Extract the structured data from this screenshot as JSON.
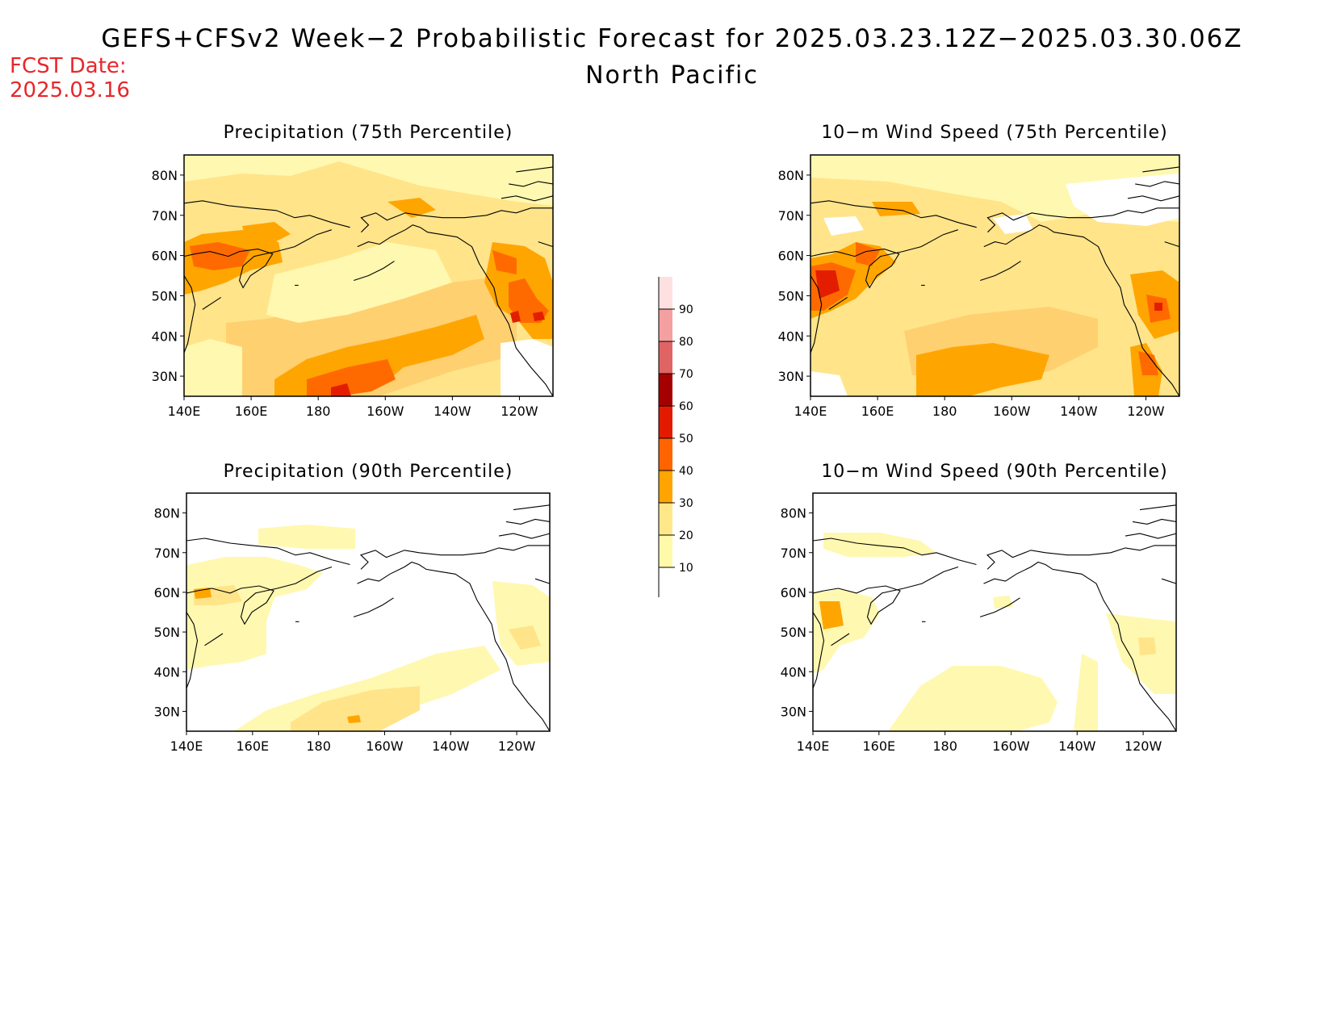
{
  "header": {
    "title": "GEFS+CFSv2 Week−2 Probabilistic Forecast for 2025.03.23.12Z−2025.03.30.06Z",
    "region": "North Pacific",
    "fcst_label": "FCST Date:",
    "fcst_date": "2025.03.16"
  },
  "panels": [
    {
      "title": "Precipitation (75th Percentile)"
    },
    {
      "title": "10−m Wind Speed (75th Percentile)"
    },
    {
      "title": "Precipitation (90th Percentile)"
    },
    {
      "title": "10−m Wind Speed (90th Percentile)"
    }
  ],
  "axes": {
    "lon_ticks": [
      "140E",
      "160E",
      "180",
      "160W",
      "140W",
      "120W"
    ],
    "lat_ticks": [
      "80N",
      "70N",
      "60N",
      "50N",
      "40N",
      "30N"
    ]
  },
  "colorbar": {
    "levels": [
      "10",
      "20",
      "30",
      "40",
      "50",
      "60",
      "70",
      "80",
      "90"
    ],
    "colors": [
      "#fffaaa",
      "#ffe88a",
      "#ffa400",
      "#ff6400",
      "#e41a00",
      "#a50000",
      "#e06464",
      "#f4a0a0",
      "#ffe0e0"
    ]
  },
  "palette": {
    "c10": "#fff8b0",
    "c20": "#ffe48a",
    "c30": "#ffa500",
    "c40": "#ff6a00",
    "c50": "#e31e00"
  }
}
